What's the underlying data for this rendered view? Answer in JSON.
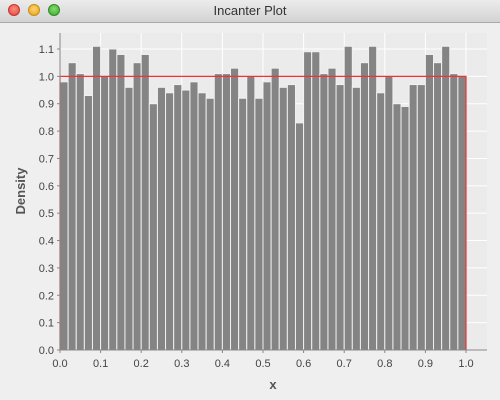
{
  "window": {
    "title": "Incanter Plot",
    "buttons": [
      "close",
      "minimize",
      "maximize"
    ]
  },
  "colors": {
    "bar_fill": "#848484",
    "bar_stroke": "#f0f0f0",
    "density_line": "#ee3333",
    "plot_background": "#ebebeb",
    "grid": "#ffffff"
  },
  "chart_data": {
    "type": "bar",
    "title": "",
    "xlabel": "x",
    "ylabel": "Density",
    "xlim": [
      0.0,
      1.0
    ],
    "ylim": [
      0.0,
      1.15
    ],
    "xticks": [
      "0.0",
      "0.1",
      "0.2",
      "0.3",
      "0.4",
      "0.5",
      "0.6",
      "0.7",
      "0.8",
      "0.9",
      "1.0"
    ],
    "yticks": [
      "0.0",
      "0.1",
      "0.2",
      "0.3",
      "0.4",
      "0.5",
      "0.6",
      "0.7",
      "0.8",
      "0.9",
      "1.0",
      "1.1"
    ],
    "bin_width": 0.02,
    "series": [
      {
        "name": "",
        "values": [
          0.98,
          1.05,
          1.01,
          0.93,
          1.11,
          1.0,
          1.1,
          1.08,
          0.96,
          1.05,
          1.08,
          0.9,
          0.96,
          0.94,
          0.97,
          0.95,
          0.98,
          0.94,
          0.92,
          1.01,
          1.01,
          1.03,
          0.92,
          1.0,
          0.92,
          0.98,
          1.03,
          0.96,
          0.97,
          0.83,
          1.09,
          1.09,
          1.01,
          1.03,
          0.97,
          1.11,
          0.96,
          1.05,
          1.11,
          0.94,
          1.0,
          0.9,
          0.89,
          0.97,
          0.97,
          1.08,
          1.05,
          1.11,
          1.01,
          1.0
        ]
      }
    ],
    "density_line": {
      "x": [
        0.0,
        1.0
      ],
      "y": 1.0
    }
  }
}
